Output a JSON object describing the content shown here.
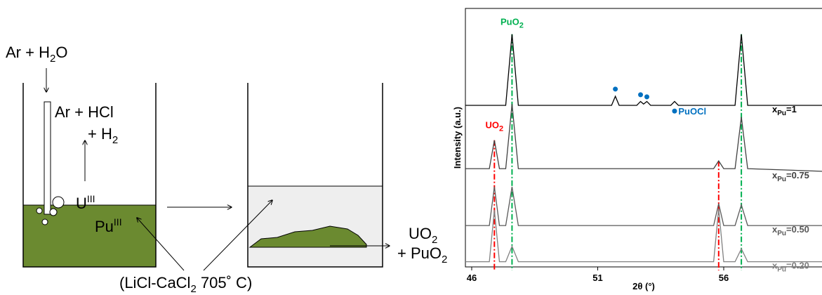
{
  "diagram": {
    "ar_h2o": [
      "Ar + H",
      "2",
      "O"
    ],
    "ar_hcl": "Ar + HCl",
    "h2": [
      "+ H",
      "2"
    ],
    "u": [
      "U",
      "III"
    ],
    "pu": [
      "Pu",
      "III"
    ],
    "uo2": [
      "UO",
      "2"
    ],
    "puo2": [
      "+ PuO",
      "2"
    ],
    "salt": [
      "(LiCl-CaCl",
      "2",
      " 705˚ C)"
    ]
  },
  "chart_data": {
    "type": "line",
    "xlabel": "2θ (°)",
    "ylabel": "Intensity (a.u.)",
    "xlim": [
      45.75,
      59.9
    ],
    "xticks": [
      46,
      51,
      56
    ],
    "ylim": [
      0,
      100
    ],
    "x": [
      45.75,
      46.7,
      46.9,
      47.1,
      47.35,
      47.6,
      47.85,
      51.55,
      51.7,
      51.85,
      52.55,
      52.7,
      52.82,
      52.95,
      53.1,
      53.9,
      54.05,
      54.2,
      55.6,
      55.8,
      56.0,
      56.45,
      56.7,
      56.95,
      59.9
    ],
    "series": [
      {
        "label": [
          "x",
          "Pu",
          "=1"
        ],
        "color": "#000000",
        "values": [
          62.5,
          62.5,
          62.5,
          62.5,
          62.5,
          90,
          62.5,
          62.5,
          66,
          62.5,
          62.5,
          64,
          63,
          64,
          62.5,
          62.5,
          64,
          62.5,
          62.5,
          62.5,
          62.5,
          62.5,
          90,
          62.5,
          62.5
        ]
      },
      {
        "label": [
          "x",
          "Pu",
          "=0.75"
        ],
        "color": "#404040",
        "values": [
          38,
          38,
          49,
          38,
          38,
          63,
          38,
          38,
          38,
          38,
          38,
          38,
          38,
          38,
          38,
          38,
          38,
          38,
          38,
          41,
          38,
          38,
          58,
          38,
          37
        ]
      },
      {
        "label": [
          "x",
          "Pu",
          "=0.50"
        ],
        "color": "#595959",
        "values": [
          16,
          16,
          31,
          16,
          16,
          31,
          16,
          16,
          16,
          16,
          16,
          16,
          16,
          16,
          16,
          16,
          16,
          16,
          16,
          24.5,
          16,
          16,
          24,
          16,
          16
        ]
      },
      {
        "label": [
          "x",
          "Pu",
          "=0.20"
        ],
        "color": "#808080",
        "values": [
          2,
          2,
          22,
          2,
          2,
          8,
          2,
          2,
          2,
          2,
          2,
          2,
          2,
          2,
          2,
          2,
          2,
          2,
          2,
          22.5,
          2,
          2,
          7,
          2,
          2
        ]
      }
    ],
    "reference_lines": [
      {
        "x": 46.9,
        "color": "#ff0000",
        "top": 49
      },
      {
        "x": 55.8,
        "color": "#ff0000",
        "top": 41
      },
      {
        "x": 47.6,
        "color": "#00b050",
        "top": 90
      },
      {
        "x": 56.7,
        "color": "#00b050",
        "top": 90
      }
    ],
    "markers": {
      "color": "#0070c0",
      "x": [
        51.7,
        52.7,
        52.95,
        54.05
      ],
      "values": [
        68.8,
        66.6,
        65.8,
        60.3
      ]
    },
    "annotations": [
      {
        "parts": [
          "PuO",
          "2"
        ],
        "color": "#00b050",
        "x": 47.6,
        "y": 92
      },
      {
        "parts": [
          "UO",
          "2"
        ],
        "color": "#ff0000",
        "x": 46.9,
        "y": 52
      },
      {
        "parts": [
          "PuOCl"
        ],
        "color": "#0070c0",
        "x": 54.2,
        "y": 60.3
      }
    ]
  }
}
